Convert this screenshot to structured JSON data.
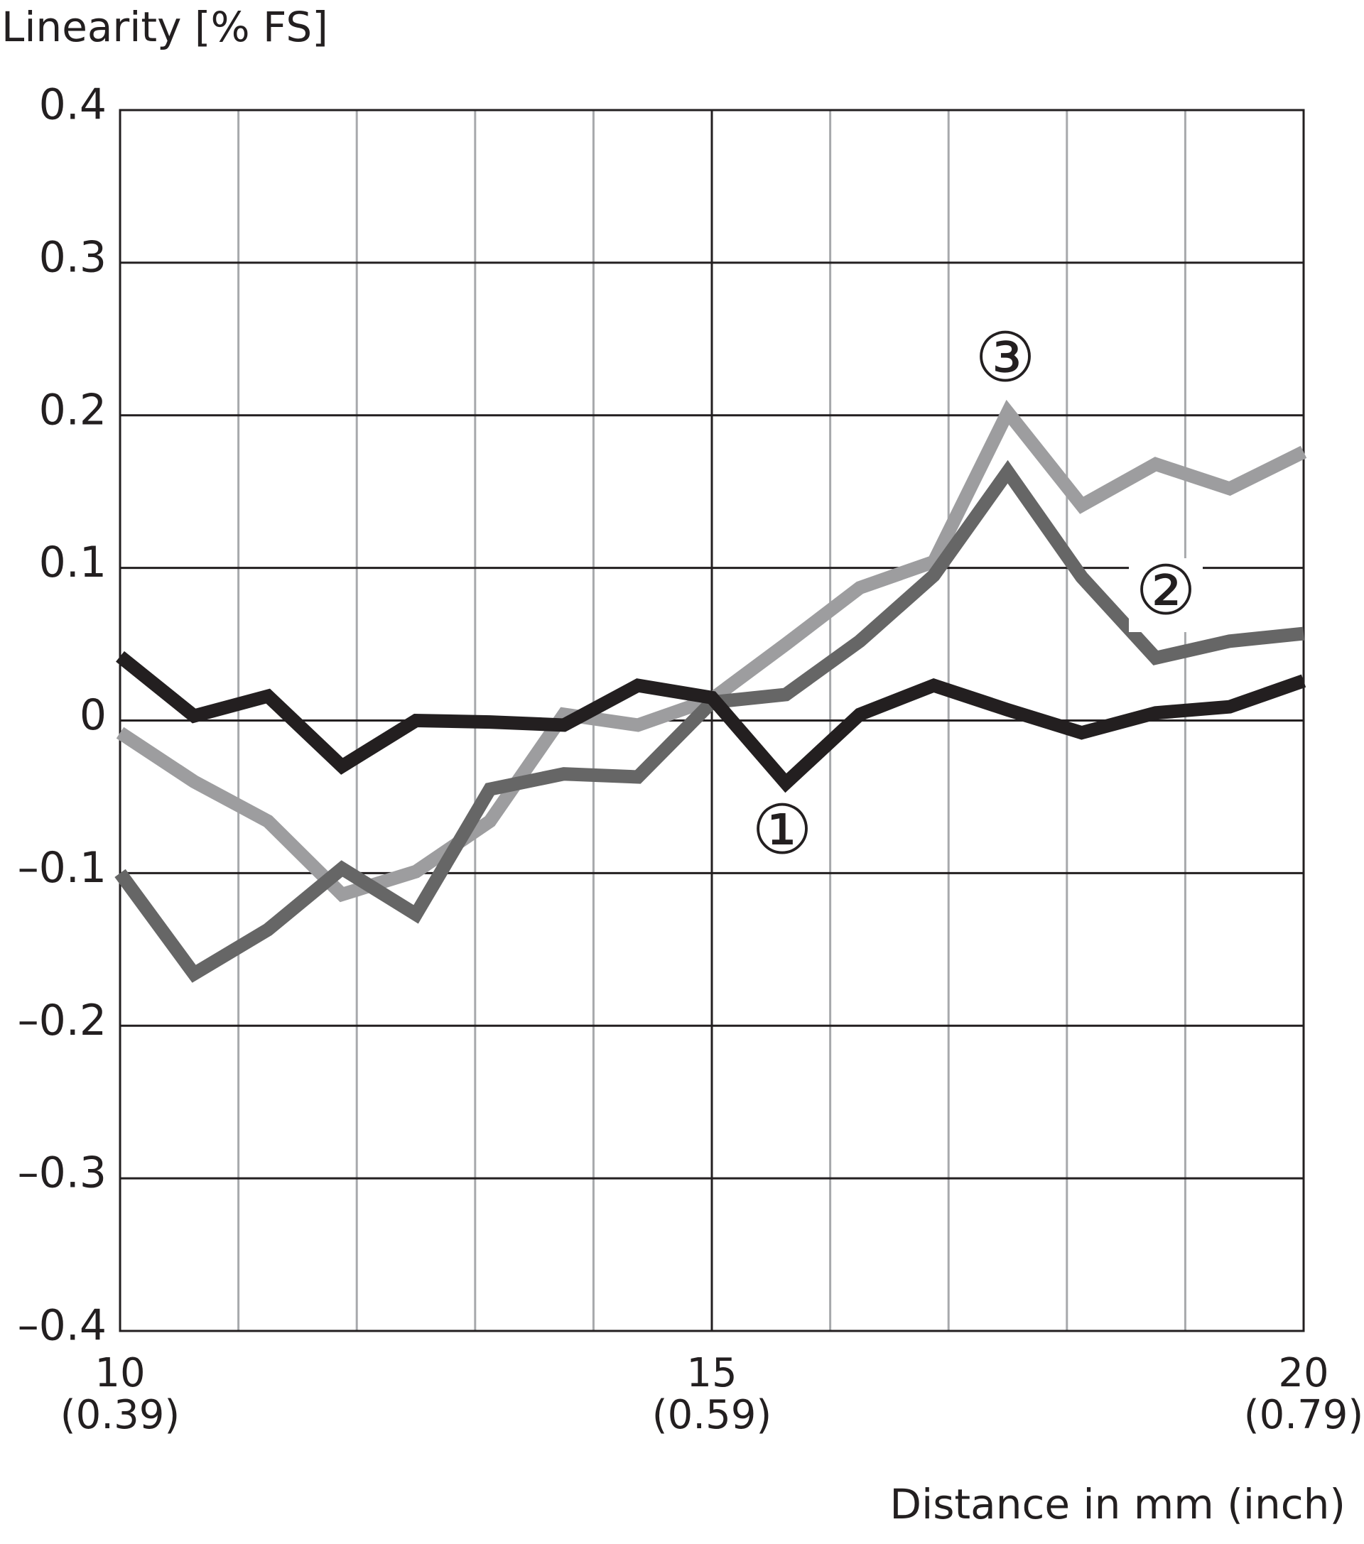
{
  "chart_data": {
    "type": "line",
    "y_axis_label": "Linearity [% FS]",
    "x_axis_label": "Distance in mm (inch)",
    "x": [
      10,
      10.625,
      11.25,
      11.875,
      12.5,
      13.125,
      13.75,
      14.375,
      15,
      15.625,
      16.25,
      16.875,
      17.5,
      18.125,
      18.75,
      19.375,
      20
    ],
    "series": [
      {
        "name": "①",
        "color": "#231f20",
        "values": [
          0.042,
          0.003,
          0.016,
          -0.03,
          0.0,
          -0.001,
          -0.003,
          0.023,
          0.015,
          -0.041,
          0.004,
          0.023,
          0.007,
          -0.008,
          0.005,
          0.009,
          0.026
        ]
      },
      {
        "name": "②",
        "color": "#666666",
        "values": [
          -0.1,
          -0.166,
          -0.137,
          -0.097,
          -0.127,
          -0.045,
          -0.035,
          -0.037,
          0.012,
          0.017,
          0.052,
          0.095,
          0.163,
          0.094,
          0.041,
          0.052,
          0.057
        ]
      },
      {
        "name": "③",
        "color": "#9d9d9f",
        "values": [
          -0.008,
          -0.04,
          -0.066,
          -0.114,
          -0.099,
          -0.066,
          0.004,
          -0.003,
          0.014,
          0.05,
          0.087,
          0.104,
          0.202,
          0.141,
          0.168,
          0.152,
          0.176
        ]
      }
    ],
    "xlim": [
      10,
      20
    ],
    "xticks": [
      {
        "value": 10,
        "label": "10\n(0.39)"
      },
      {
        "value": 15,
        "label": "15\n(0.59)"
      },
      {
        "value": 20,
        "label": "20\n(0.79)"
      }
    ],
    "x_minor_ticks": [
      11,
      12,
      13,
      14,
      16,
      17,
      18,
      19
    ],
    "ylim": [
      -0.4,
      0.4
    ],
    "yticks": [
      {
        "value": -0.4,
        "label": "–0.4"
      },
      {
        "value": -0.3,
        "label": "–0.3"
      },
      {
        "value": -0.2,
        "label": "–0.2"
      },
      {
        "value": -0.1,
        "label": "–0.1"
      },
      0,
      0.1,
      0.2,
      0.3,
      0.4
    ],
    "grid": true
  }
}
